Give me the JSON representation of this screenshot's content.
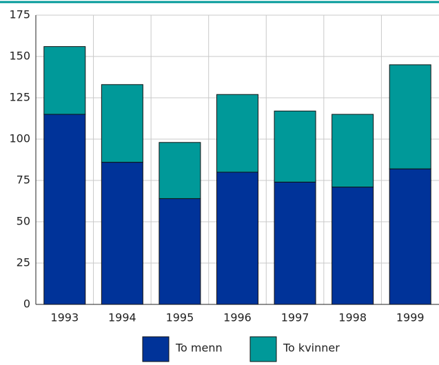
{
  "chart_data": {
    "type": "stacked-bar",
    "categories": [
      "1993",
      "1994",
      "1995",
      "1996",
      "1997",
      "1998",
      "1999"
    ],
    "series": [
      {
        "name": "To menn",
        "color": "#003399",
        "values": [
          115,
          86,
          64,
          80,
          74,
          71,
          82
        ]
      },
      {
        "name": "To kvinner",
        "color": "#009999",
        "values": [
          41,
          47,
          34,
          47,
          43,
          44,
          63
        ]
      }
    ],
    "ylim": [
      0,
      175
    ],
    "yticks": [
      0,
      25,
      50,
      75,
      100,
      125,
      150,
      175
    ],
    "grid": true,
    "legend": "bottom"
  }
}
